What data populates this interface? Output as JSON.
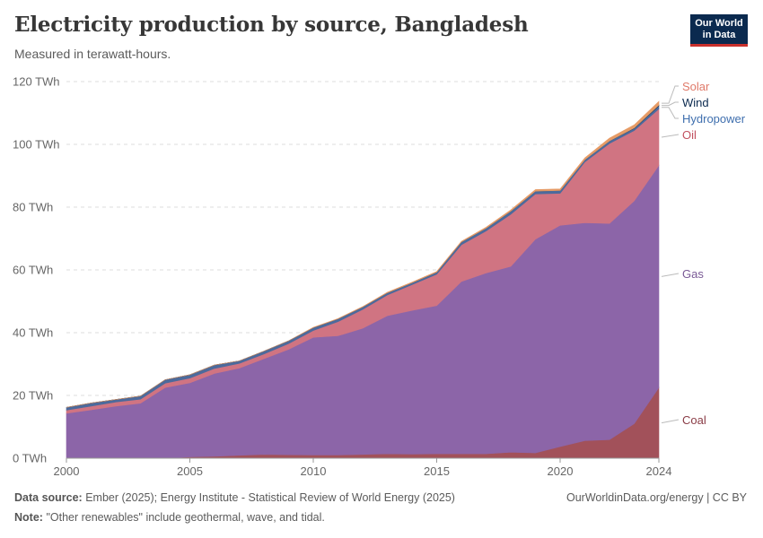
{
  "header": {
    "title": "Electricity production by source, Bangladesh",
    "subtitle": "Measured in terawatt-hours.",
    "logo_line1": "Our World",
    "logo_line2": "in Data"
  },
  "footer": {
    "source_label": "Data source:",
    "source_text": "Ember (2025); Energy Institute - Statistical Review of World Energy (2025)",
    "note_label": "Note:",
    "note_text": "\"Other renewables\" include geothermal, wave, and tidal.",
    "attribution": "OurWorldinData.org/energy | CC BY"
  },
  "chart_data": {
    "type": "area",
    "stacked": true,
    "y_unit": "TWh",
    "ylim": [
      0,
      120
    ],
    "y_ticks": [
      0,
      20,
      40,
      60,
      80,
      100,
      120
    ],
    "y_tick_labels": [
      "0 TWh",
      "20 TWh",
      "40 TWh",
      "60 TWh",
      "80 TWh",
      "100 TWh",
      "120 TWh"
    ],
    "xlim": [
      2000,
      2024
    ],
    "x_ticks": [
      2000,
      2005,
      2010,
      2015,
      2020,
      2024
    ],
    "x_tick_labels": [
      "2000",
      "2005",
      "2010",
      "2015",
      "2020",
      "2024"
    ],
    "grid": "horizontal dashed",
    "legend_position": "right, inline labels",
    "x": [
      2000,
      2001,
      2002,
      2003,
      2004,
      2005,
      2006,
      2007,
      2008,
      2009,
      2010,
      2011,
      2012,
      2013,
      2014,
      2015,
      2016,
      2017,
      2018,
      2019,
      2020,
      2021,
      2022,
      2023,
      2024
    ],
    "series": [
      {
        "name": "Coal",
        "color": "#a2515a",
        "values": [
          0,
          0,
          0,
          0,
          0,
          0.4,
          0.6,
          0.9,
          1.2,
          1.1,
          1.0,
          1.0,
          1.2,
          1.4,
          1.3,
          1.4,
          1.4,
          1.4,
          1.9,
          1.7,
          3.7,
          5.6,
          5.9,
          11.0,
          22.5
        ]
      },
      {
        "name": "Gas",
        "color": "#8c65a8",
        "values": [
          14.3,
          15.4,
          16.6,
          17.5,
          22.5,
          23.6,
          26.4,
          27.8,
          30.5,
          33.6,
          37.5,
          38.0,
          40.2,
          44.0,
          45.8,
          47.2,
          54.9,
          57.6,
          59.2,
          68.1,
          70.5,
          69.4,
          68.9,
          71.0,
          70.8
        ]
      },
      {
        "name": "Oil",
        "color": "#d07482",
        "values": [
          1.0,
          1.2,
          1.3,
          1.3,
          1.4,
          1.5,
          1.6,
          1.5,
          1.5,
          1.8,
          2.2,
          4.5,
          6.0,
          6.6,
          8.2,
          10.0,
          11.7,
          13.4,
          16.6,
          14.4,
          10.2,
          19.4,
          25.5,
          22.4,
          18.0
        ]
      },
      {
        "name": "Hydropower",
        "color": "#4c6a9c",
        "values": [
          0.9,
          1.0,
          0.8,
          1.0,
          1.1,
          1.1,
          1.1,
          0.8,
          0.9,
          0.9,
          0.9,
          0.9,
          0.8,
          0.7,
          0.6,
          0.7,
          0.9,
          0.9,
          1.0,
          0.9,
          0.9,
          0.7,
          0.8,
          0.7,
          1.0
        ]
      },
      {
        "name": "Wind",
        "color": "#0b2a4f",
        "values": [
          0,
          0,
          0,
          0,
          0,
          0,
          0,
          0,
          0,
          0,
          0,
          0,
          0,
          0,
          0,
          0,
          0,
          0,
          0,
          0,
          0,
          0,
          0,
          0.1,
          0.2
        ]
      },
      {
        "name": "Solar",
        "color": "#e69b66",
        "values": [
          0,
          0,
          0,
          0,
          0,
          0,
          0,
          0,
          0,
          0,
          0.1,
          0.1,
          0.1,
          0.2,
          0.2,
          0.2,
          0.2,
          0.3,
          0.4,
          0.5,
          0.5,
          0.6,
          0.9,
          1.0,
          1.2
        ]
      }
    ],
    "label_colors": {
      "Solar": "#e07a6a",
      "Wind": "#0b2a4f",
      "Hydropower": "#3f6fae",
      "Oil": "#c2515f",
      "Gas": "#7a5a96",
      "Coal": "#8a3c46"
    }
  }
}
